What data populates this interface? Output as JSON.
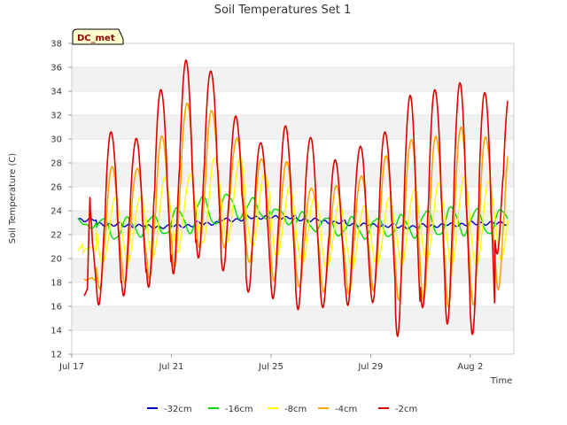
{
  "chart_data": {
    "type": "line",
    "title": "Soil Temperatures Set 1",
    "xlabel": "Time",
    "ylabel": "Soil Temperature (C)",
    "ylim": [
      12,
      38
    ],
    "yticks": [
      12,
      14,
      16,
      18,
      20,
      22,
      24,
      26,
      28,
      30,
      32,
      34,
      36,
      38
    ],
    "xlim": [
      "2023-07-17",
      "2023-08-03T18:00"
    ],
    "xticks": [
      {
        "date": "2023-07-17",
        "label": "Jul 17"
      },
      {
        "date": "2023-07-21",
        "label": "Jul 21"
      },
      {
        "date": "2023-07-25",
        "label": "Jul 25"
      },
      {
        "date": "2023-07-29",
        "label": "Jul 29"
      },
      {
        "date": "2023-08-02",
        "label": "Aug 2"
      }
    ],
    "grid": "horizontal bands",
    "legend": "bottom",
    "badge": "DC_met",
    "days": [
      "Jul 17",
      "Jul 18",
      "Jul 19",
      "Jul 20",
      "Jul 21",
      "Jul 22",
      "Jul 23",
      "Jul 24",
      "Jul 25",
      "Jul 26",
      "Jul 27",
      "Jul 28",
      "Jul 29",
      "Jul 30",
      "Jul 31",
      "Aug 1",
      "Aug 2",
      "Aug 3"
    ],
    "series": [
      {
        "name": "-32cm",
        "color": "#0000cc",
        "start": "2023-07-17T06:00",
        "end": "2023-08-03T12:00",
        "peak_hour": 0,
        "min": [
          23.2,
          22.8,
          22.7,
          22.6,
          22.7,
          22.9,
          23.2,
          23.4,
          23.4,
          23.2,
          23.0,
          22.8,
          22.7,
          22.6,
          22.7,
          22.8,
          22.9,
          22.9
        ],
        "max": [
          23.3,
          22.9,
          22.8,
          22.7,
          22.8,
          23.0,
          23.3,
          23.5,
          23.5,
          23.3,
          23.1,
          22.9,
          22.8,
          22.7,
          22.8,
          22.9,
          23.0,
          23.0
        ]
      },
      {
        "name": "-16cm",
        "color": "#00dd00",
        "start": "2023-07-17T06:00",
        "end": "2023-08-03T12:00",
        "peak_hour": 6,
        "min": [
          22.6,
          21.6,
          21.9,
          22.0,
          22.2,
          22.8,
          23.4,
          23.3,
          22.9,
          22.3,
          21.9,
          21.7,
          21.8,
          21.8,
          21.9,
          22.0,
          22.0,
          22.3
        ],
        "max": [
          23.2,
          23.4,
          23.4,
          23.6,
          24.2,
          25.2,
          25.4,
          25.0,
          24.2,
          23.8,
          23.5,
          23.4,
          23.4,
          23.6,
          24.0,
          24.3,
          24.1,
          24.1
        ]
      },
      {
        "name": "-8cm",
        "color": "#ffff00",
        "start": "2023-07-17T06:00",
        "end": "2023-08-03T12:00",
        "peak_hour": 18,
        "min": [
          20.0,
          19.6,
          19.8,
          20.0,
          20.6,
          21.2,
          21.5,
          21.0,
          20.2,
          19.6,
          19.2,
          19.2,
          19.4,
          19.6,
          19.8,
          19.5,
          19.4,
          20.0
        ],
        "max": [
          21.0,
          25.0,
          25.2,
          26.8,
          27.0,
          28.5,
          28.4,
          27.2,
          26.0,
          25.2,
          24.6,
          24.5,
          25.0,
          25.8,
          26.3,
          26.8,
          26.5,
          26.4
        ],
        "start_value": 20.8
      },
      {
        "name": "-4cm",
        "color": "#ffa500",
        "start": "2023-07-17T12:00",
        "end": "2023-08-03T12:00",
        "peak_hour": 15,
        "min": [
          18.2,
          17.4,
          18.0,
          18.2,
          19.4,
          20.8,
          21.0,
          19.6,
          18.2,
          17.6,
          17.2,
          17.0,
          17.2,
          16.6,
          16.4,
          16.0,
          16.0,
          17.5
        ],
        "max": [
          18.3,
          27.6,
          27.6,
          30.2,
          33.0,
          32.4,
          30.0,
          28.4,
          28.0,
          26.0,
          26.0,
          27.0,
          28.5,
          30.0,
          30.2,
          31.0,
          30.2,
          30.2
        ],
        "start_value": 18.2
      },
      {
        "name": "-2cm",
        "color": "#dd0000",
        "start": "2023-07-17T12:00",
        "end": "2023-08-03T12:00",
        "peak_hour": 14,
        "min": [
          16.8,
          16.0,
          17.0,
          17.5,
          18.8,
          20.0,
          19.0,
          17.2,
          16.6,
          15.8,
          15.8,
          16.2,
          16.2,
          13.6,
          15.8,
          14.6,
          13.6,
          20.4
        ],
        "max": [
          25.8,
          30.6,
          30.0,
          34.2,
          36.5,
          35.8,
          31.8,
          29.8,
          31.0,
          30.2,
          28.2,
          29.4,
          30.6,
          33.6,
          34.2,
          34.6,
          34.0,
          33.9
        ],
        "start_value": 17.0,
        "early_peak": 25.8
      }
    ]
  }
}
